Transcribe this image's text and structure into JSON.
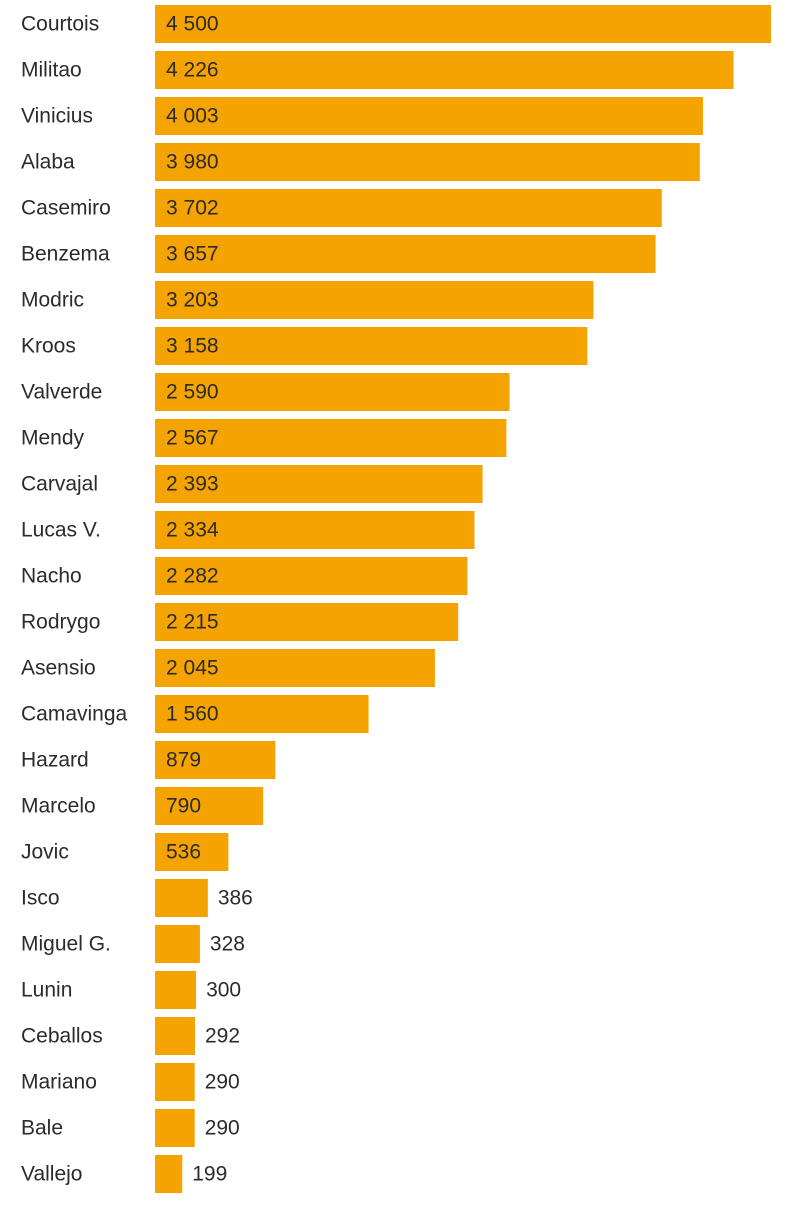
{
  "chart_data": {
    "type": "bar",
    "orientation": "horizontal",
    "categories": [
      "Courtois",
      "Militao",
      "Vinicius",
      "Alaba",
      "Casemiro",
      "Benzema",
      "Modric",
      "Kroos",
      "Valverde",
      "Mendy",
      "Carvajal",
      "Lucas V.",
      "Nacho",
      "Rodrygo",
      "Asensio",
      "Camavinga",
      "Hazard",
      "Marcelo",
      "Jovic",
      "Isco",
      "Miguel G.",
      "Lunin",
      "Ceballos",
      "Mariano",
      "Bale",
      "Vallejo"
    ],
    "values": [
      4500,
      4226,
      4003,
      3980,
      3702,
      3657,
      3203,
      3158,
      2590,
      2567,
      2393,
      2334,
      2282,
      2215,
      2045,
      1560,
      879,
      790,
      536,
      386,
      328,
      300,
      292,
      290,
      290,
      199
    ],
    "value_labels": [
      "4 500",
      "4 226",
      "4 003",
      "3 980",
      "3 702",
      "3 657",
      "3 203",
      "3 158",
      "2 590",
      "2 567",
      "2 393",
      "2 334",
      "2 282",
      "2 215",
      "2 045",
      "1 560",
      "879",
      "790",
      "536",
      "386",
      "328",
      "300",
      "292",
      "290",
      "290",
      "199"
    ],
    "xlim": [
      0,
      4500
    ],
    "grid": false,
    "legend": "none",
    "bar_color": "#f5a300",
    "label_color": "#2b2b2b"
  }
}
